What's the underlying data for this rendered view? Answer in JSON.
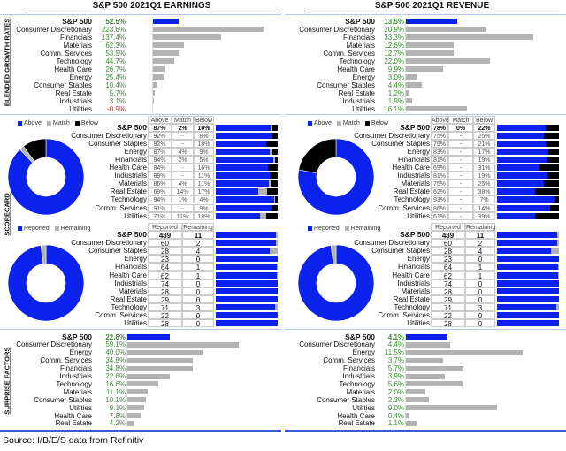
{
  "colors": {
    "sp500_bar": "#0b22ee",
    "sector_bar": "#b3b3b3",
    "positive": "#3f8a3a",
    "negative": "#e02020",
    "above": "#0b22ee",
    "match": "#b3b3b3",
    "below": "#000000",
    "reported": "#0b22ee",
    "remaining": "#b3b3b3"
  },
  "earnings": {
    "title": "S&P 500 2021Q1 EARNINGS"
  },
  "revenue": {
    "title": "S&P 500 2021Q1 REVENUE"
  },
  "sections": {
    "growth": "BLENDED GROWTH RATES",
    "scorecard": "SCORECARD",
    "surprise": "SURPRISE FACTORS"
  },
  "legends": {
    "above": "Above",
    "match": "Match",
    "below": "Below",
    "reported": "Reported",
    "remaining": "Remaining"
  },
  "table_headers": {
    "above": "Above",
    "match": "Match",
    "below": "Below",
    "reported": "Reported",
    "remaining": "Remaining"
  },
  "chart_data": [
    {
      "id": "earnings_growth",
      "type": "bar",
      "orientation": "horizontal",
      "categories": [
        "S&P 500",
        "Consumer Discretionary",
        "Financials",
        "Materials",
        "Comm. Services",
        "Technology",
        "Health Care",
        "Energy",
        "Consumer Staples",
        "Real Estate",
        "Industrials",
        "Utilities"
      ],
      "labels": [
        "52.5%",
        "223.6%",
        "137.4%",
        "62.3%",
        "53.5%",
        "44.7%",
        "26.7%",
        "25.4%",
        "10.4%",
        "5.7%",
        "3.1%",
        "-0.9%"
      ]
    },
    {
      "id": "revenue_growth",
      "type": "bar",
      "orientation": "horizontal",
      "categories": [
        "S&P 500",
        "Consumer Discretionary",
        "Financials",
        "Materials",
        "Comm. Services",
        "Technology",
        "Health Care",
        "Energy",
        "Consumer Staples",
        "Real Estate",
        "Industrials",
        "Utilities"
      ],
      "labels": [
        "13.5%",
        "20.9%",
        "33.3%",
        "12.6%",
        "12.7%",
        "22.0%",
        "9.9%",
        "3.0%",
        "4.4%",
        "1.2%",
        "1.9%",
        "16.1%"
      ]
    },
    {
      "id": "earnings_scorecard",
      "type": "table",
      "rows": [
        {
          "name": "S&P 500",
          "above": "87%",
          "match": "2%",
          "below": "10%"
        },
        {
          "name": "Consumer Discretionary",
          "above": "92%",
          "match": "-",
          "below": "8%"
        },
        {
          "name": "Consumer Staples",
          "above": "82%",
          "match": "-",
          "below": "18%"
        },
        {
          "name": "Energy",
          "above": "87%",
          "match": "4%",
          "below": "9%"
        },
        {
          "name": "Financials",
          "above": "94%",
          "match": "2%",
          "below": "5%"
        },
        {
          "name": "Health Care",
          "above": "84%",
          "match": "-",
          "below": "16%"
        },
        {
          "name": "Industrials",
          "above": "89%",
          "match": "-",
          "below": "11%"
        },
        {
          "name": "Materials",
          "above": "86%",
          "match": "4%",
          "below": "11%"
        },
        {
          "name": "Real Estate",
          "above": "69%",
          "match": "14%",
          "below": "17%"
        },
        {
          "name": "Technology",
          "above": "94%",
          "match": "1%",
          "below": "4%"
        },
        {
          "name": "Comm. Services",
          "above": "91%",
          "match": "-",
          "below": "9%"
        },
        {
          "name": "Utilities",
          "above": "71%",
          "match": "11%",
          "below": "18%"
        }
      ]
    },
    {
      "id": "revenue_scorecard",
      "type": "table",
      "rows": [
        {
          "name": "S&P 500",
          "above": "78%",
          "match": "0%",
          "below": "22%"
        },
        {
          "name": "Consumer Discretionary",
          "above": "75%",
          "match": "-",
          "below": "25%"
        },
        {
          "name": "Consumer Staples",
          "above": "79%",
          "match": "-",
          "below": "21%"
        },
        {
          "name": "Energy",
          "above": "83%",
          "match": "-",
          "below": "17%"
        },
        {
          "name": "Financials",
          "above": "81%",
          "match": "-",
          "below": "19%"
        },
        {
          "name": "Health Care",
          "above": "69%",
          "match": "-",
          "below": "31%"
        },
        {
          "name": "Industrials",
          "above": "81%",
          "match": "-",
          "below": "19%"
        },
        {
          "name": "Materials",
          "above": "75%",
          "match": "-",
          "below": "25%"
        },
        {
          "name": "Real Estate",
          "above": "62%",
          "match": "-",
          "below": "38%"
        },
        {
          "name": "Technology",
          "above": "93%",
          "match": "-",
          "below": "7%"
        },
        {
          "name": "Comm. Services",
          "above": "86%",
          "match": "-",
          "below": "14%"
        },
        {
          "name": "Utilities",
          "above": "61%",
          "match": "-",
          "below": "39%"
        }
      ]
    },
    {
      "id": "earnings_reported",
      "type": "table",
      "rows": [
        {
          "name": "S&P 500",
          "reported": "489",
          "remaining": "11"
        },
        {
          "name": "Consumer Discretionary",
          "reported": "60",
          "remaining": "2"
        },
        {
          "name": "Consumer Staples",
          "reported": "28",
          "remaining": "4"
        },
        {
          "name": "Energy",
          "reported": "23",
          "remaining": "0"
        },
        {
          "name": "Financials",
          "reported": "64",
          "remaining": "1"
        },
        {
          "name": "Health Care",
          "reported": "62",
          "remaining": "1"
        },
        {
          "name": "Industrials",
          "reported": "74",
          "remaining": "0"
        },
        {
          "name": "Materials",
          "reported": "28",
          "remaining": "0"
        },
        {
          "name": "Real Estate",
          "reported": "29",
          "remaining": "0"
        },
        {
          "name": "Technology",
          "reported": "71",
          "remaining": "3"
        },
        {
          "name": "Comm. Services",
          "reported": "22",
          "remaining": "0"
        },
        {
          "name": "Utilities",
          "reported": "28",
          "remaining": "0"
        }
      ]
    },
    {
      "id": "revenue_reported",
      "type": "table",
      "rows": [
        {
          "name": "S&P 500",
          "reported": "489",
          "remaining": "11"
        },
        {
          "name": "Consumer Discretionary",
          "reported": "60",
          "remaining": "2"
        },
        {
          "name": "Consumer Staples",
          "reported": "28",
          "remaining": "4"
        },
        {
          "name": "Energy",
          "reported": "23",
          "remaining": "0"
        },
        {
          "name": "Financials",
          "reported": "64",
          "remaining": "1"
        },
        {
          "name": "Health Care",
          "reported": "62",
          "remaining": "1"
        },
        {
          "name": "Industrials",
          "reported": "74",
          "remaining": "0"
        },
        {
          "name": "Materials",
          "reported": "28",
          "remaining": "0"
        },
        {
          "name": "Real Estate",
          "reported": "29",
          "remaining": "0"
        },
        {
          "name": "Technology",
          "reported": "71",
          "remaining": "3"
        },
        {
          "name": "Comm. Services",
          "reported": "22",
          "remaining": "0"
        },
        {
          "name": "Utilities",
          "reported": "28",
          "remaining": "0"
        }
      ]
    },
    {
      "id": "earnings_surprise",
      "type": "bar",
      "orientation": "horizontal",
      "categories": [
        "S&P 500",
        "Consumer Discretionary",
        "Energy",
        "Comm. Services",
        "Financials",
        "Industrials",
        "Technology",
        "Materials",
        "Consumer Staples",
        "Utilities",
        "Health Care",
        "Real Estate"
      ],
      "labels": [
        "22.6%",
        "59.1%",
        "40.0%",
        "34.8%",
        "34.8%",
        "22.6%",
        "16.6%",
        "11.1%",
        "10.1%",
        "9.1%",
        "7.8%",
        "4.2%"
      ]
    },
    {
      "id": "revenue_surprise",
      "type": "bar",
      "orientation": "horizontal",
      "categories": [
        "S&P 500",
        "Consumer Discretionary",
        "Energy",
        "Comm. Services",
        "Financials",
        "Industrials",
        "Technology",
        "Materials",
        "Consumer Staples",
        "Utilities",
        "Health Care",
        "Real Estate"
      ],
      "labels": [
        "4.1%",
        "4.4%",
        "11.5%",
        "3.7%",
        "5.7%",
        "3.9%",
        "5.6%",
        "2.0%",
        "2.3%",
        "9.0%",
        "0.4%",
        "1.1%"
      ]
    }
  ],
  "source": "Source: I/B/E/S data from Refinitiv"
}
